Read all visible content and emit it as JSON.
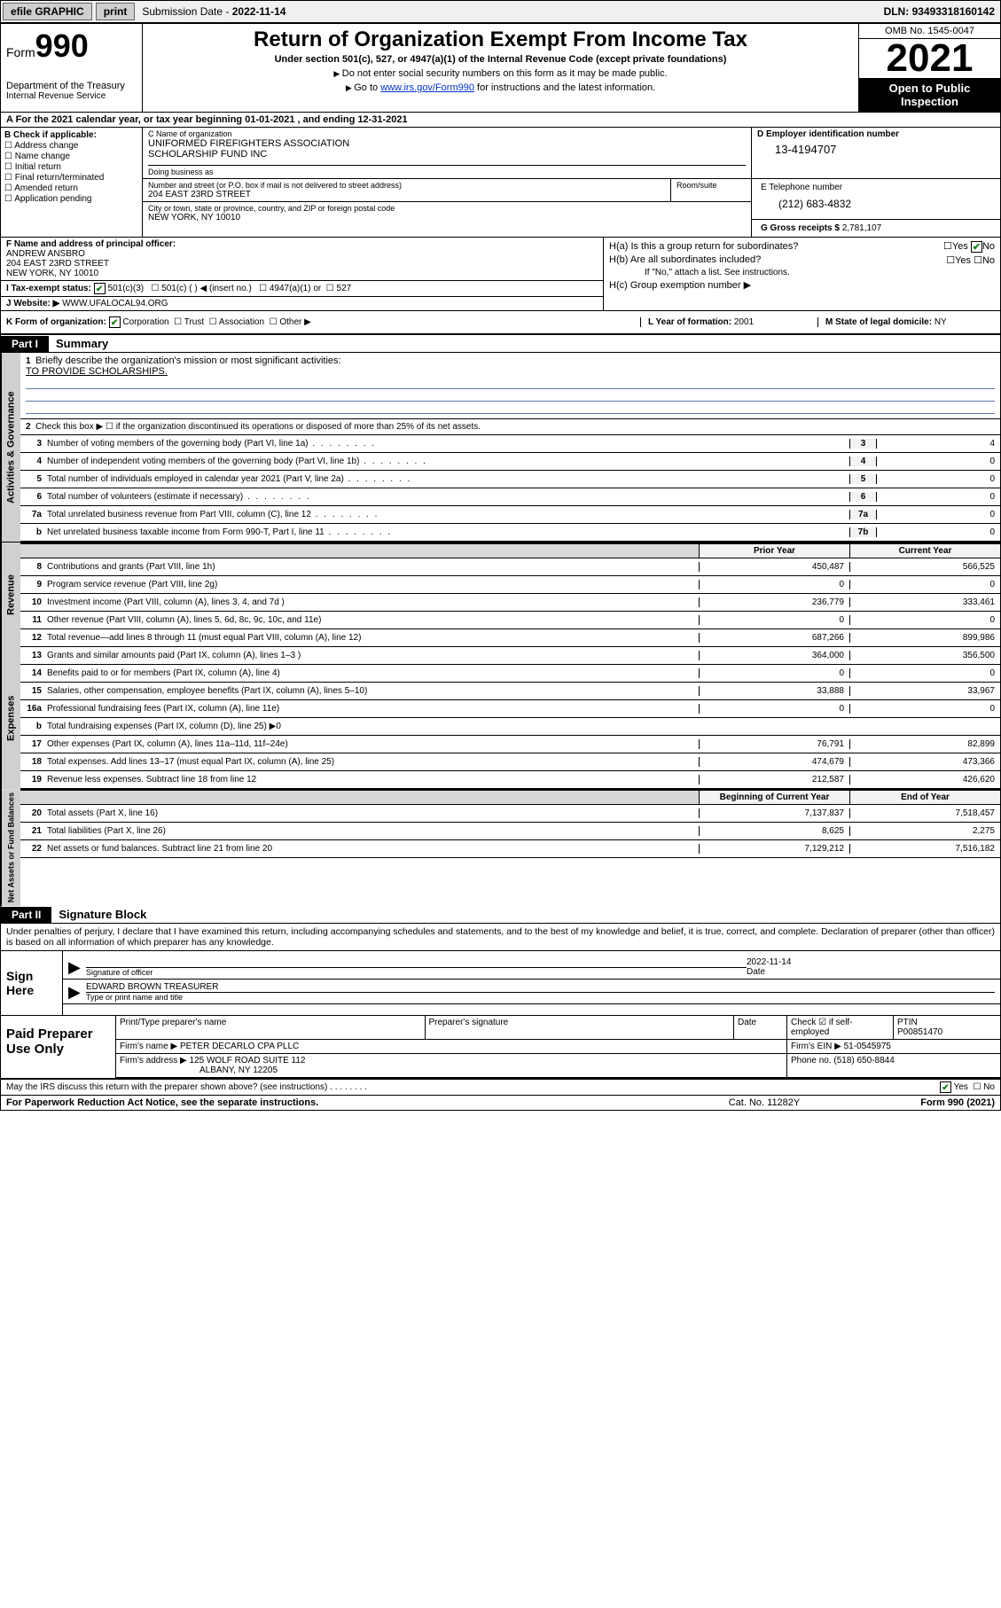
{
  "topbar": {
    "efile": "efile GRAPHIC",
    "print": "print",
    "submission_label": "Submission Date - ",
    "submission_date": "2022-11-14",
    "dln_label": "DLN: ",
    "dln": "93493318160142"
  },
  "header": {
    "form_label": "Form",
    "form_number": "990",
    "title": "Return of Organization Exempt From Income Tax",
    "subtitle": "Under section 501(c), 527, or 4947(a)(1) of the Internal Revenue Code (except private foundations)",
    "note1": "Do not enter social security numbers on this form as it may be made public.",
    "note2_pre": "Go to ",
    "note2_link": "www.irs.gov/Form990",
    "note2_post": " for instructions and the latest information.",
    "dept": "Department of the Treasury",
    "irs": "Internal Revenue Service",
    "omb": "OMB No. 1545-0047",
    "year": "2021",
    "open": "Open to Public Inspection"
  },
  "period": {
    "label_a": "A For the 2021 calendar year, or tax year beginning ",
    "begin": "01-01-2021",
    "mid": " , and ending ",
    "end": "12-31-2021"
  },
  "blockB": {
    "title": "B Check if applicable:",
    "addr": "Address change",
    "name": "Name change",
    "initial": "Initial return",
    "final": "Final return/terminated",
    "amended": "Amended return",
    "app": "Application pending"
  },
  "blockC": {
    "name_lbl": "C Name of organization",
    "name1": "UNIFORMED FIREFIGHTERS ASSOCIATION",
    "name2": "SCHOLARSHIP FUND INC",
    "dba_lbl": "Doing business as",
    "street_lbl": "Number and street (or P.O. box if mail is not delivered to street address)",
    "street": "204 EAST 23RD STREET",
    "room_lbl": "Room/suite",
    "city_lbl": "City or town, state or province, country, and ZIP or foreign postal code",
    "city": "NEW YORK, NY  10010"
  },
  "blockD": {
    "lbl": "D Employer identification number",
    "val": "13-4194707"
  },
  "blockE": {
    "lbl": "E Telephone number",
    "val": "(212) 683-4832"
  },
  "blockG": {
    "lbl": "G Gross receipts $ ",
    "val": "2,781,107"
  },
  "blockF": {
    "lbl": "F Name and address of principal officer:",
    "name": "ANDREW ANSBRO",
    "street": "204 EAST 23RD STREET",
    "city": "NEW YORK, NY  10010"
  },
  "blockH": {
    "ha": "H(a)  Is this a group return for subordinates?",
    "hb": "H(b)  Are all subordinates included?",
    "hb_note": "If \"No,\" attach a list. See instructions.",
    "hc": "H(c)  Group exemption number ▶",
    "yes": "Yes",
    "no": "No"
  },
  "blockI": {
    "lbl": "I   Tax-exempt status:",
    "c3": "501(c)(3)",
    "c_other": "501(c) (  ) ◀ (insert no.)",
    "a1": "4947(a)(1) or",
    "s527": "527"
  },
  "blockJ": {
    "lbl": "J   Website: ▶",
    "val": "WWW.UFALOCAL94.ORG"
  },
  "blockK": {
    "lbl": "K Form of organization:",
    "corp": "Corporation",
    "trust": "Trust",
    "assoc": "Association",
    "other": "Other ▶"
  },
  "blockL": {
    "lbl": "L Year of formation: ",
    "val": "2001"
  },
  "blockM": {
    "lbl": "M State of legal domicile: ",
    "val": "NY"
  },
  "part1": {
    "label": "Part I",
    "title": "Summary",
    "tab_gov": "Activities & Governance",
    "tab_rev": "Revenue",
    "tab_exp": "Expenses",
    "tab_net": "Net Assets or Fund Balances",
    "line1_lbl": "Briefly describe the organization's mission or most significant activities:",
    "line1_val": "TO PROVIDE SCHOLARSHIPS.",
    "line2": "Check this box ▶ ☐ if the organization discontinued its operations or disposed of more than 25% of its net assets.",
    "rows_gov": [
      {
        "n": "3",
        "t": "Number of voting members of the governing body (Part VI, line 1a)",
        "box": "3",
        "v": "4"
      },
      {
        "n": "4",
        "t": "Number of independent voting members of the governing body (Part VI, line 1b)",
        "box": "4",
        "v": "0"
      },
      {
        "n": "5",
        "t": "Total number of individuals employed in calendar year 2021 (Part V, line 2a)",
        "box": "5",
        "v": "0"
      },
      {
        "n": "6",
        "t": "Total number of volunteers (estimate if necessary)",
        "box": "6",
        "v": "0"
      },
      {
        "n": "7a",
        "t": "Total unrelated business revenue from Part VIII, column (C), line 12",
        "box": "7a",
        "v": "0"
      },
      {
        "n": "b",
        "t": "Net unrelated business taxable income from Form 990-T, Part I, line 11",
        "box": "7b",
        "v": "0"
      }
    ],
    "prior": "Prior Year",
    "current": "Current Year",
    "rows_rev": [
      {
        "n": "8",
        "t": "Contributions and grants (Part VIII, line 1h)",
        "v1": "450,487",
        "v2": "566,525"
      },
      {
        "n": "9",
        "t": "Program service revenue (Part VIII, line 2g)",
        "v1": "0",
        "v2": "0"
      },
      {
        "n": "10",
        "t": "Investment income (Part VIII, column (A), lines 3, 4, and 7d )",
        "v1": "236,779",
        "v2": "333,461"
      },
      {
        "n": "11",
        "t": "Other revenue (Part VIII, column (A), lines 5, 6d, 8c, 9c, 10c, and 11e)",
        "v1": "0",
        "v2": "0"
      },
      {
        "n": "12",
        "t": "Total revenue—add lines 8 through 11 (must equal Part VIII, column (A), line 12)",
        "v1": "687,266",
        "v2": "899,986"
      }
    ],
    "rows_exp": [
      {
        "n": "13",
        "t": "Grants and similar amounts paid (Part IX, column (A), lines 1–3 )",
        "v1": "364,000",
        "v2": "356,500"
      },
      {
        "n": "14",
        "t": "Benefits paid to or for members (Part IX, column (A), line 4)",
        "v1": "0",
        "v2": "0"
      },
      {
        "n": "15",
        "t": "Salaries, other compensation, employee benefits (Part IX, column (A), lines 5–10)",
        "v1": "33,888",
        "v2": "33,967"
      },
      {
        "n": "16a",
        "t": "Professional fundraising fees (Part IX, column (A), line 11e)",
        "v1": "0",
        "v2": "0"
      },
      {
        "n": "b",
        "t": "Total fundraising expenses (Part IX, column (D), line 25) ▶0",
        "v1": "",
        "v2": "",
        "shade": true
      },
      {
        "n": "17",
        "t": "Other expenses (Part IX, column (A), lines 11a–11d, 11f–24e)",
        "v1": "76,791",
        "v2": "82,899"
      },
      {
        "n": "18",
        "t": "Total expenses. Add lines 13–17 (must equal Part IX, column (A), line 25)",
        "v1": "474,679",
        "v2": "473,366"
      },
      {
        "n": "19",
        "t": "Revenue less expenses. Subtract line 18 from line 12",
        "v1": "212,587",
        "v2": "426,620"
      }
    ],
    "begin": "Beginning of Current Year",
    "end": "End of Year",
    "rows_net": [
      {
        "n": "20",
        "t": "Total assets (Part X, line 16)",
        "v1": "7,137,837",
        "v2": "7,518,457"
      },
      {
        "n": "21",
        "t": "Total liabilities (Part X, line 26)",
        "v1": "8,625",
        "v2": "2,275"
      },
      {
        "n": "22",
        "t": "Net assets or fund balances. Subtract line 21 from line 20",
        "v1": "7,129,212",
        "v2": "7,516,182"
      }
    ]
  },
  "part2": {
    "label": "Part II",
    "title": "Signature Block",
    "intro": "Under penalties of perjury, I declare that I have examined this return, including accompanying schedules and statements, and to the best of my knowledge and belief, it is true, correct, and complete. Declaration of preparer (other than officer) is based on all information of which preparer has any knowledge.",
    "sign_here": "Sign Here",
    "sig_officer_lbl": "Signature of officer",
    "sig_date_lbl": "Date",
    "sig_date": "2022-11-14",
    "officer_name": "EDWARD BROWN  TREASURER",
    "officer_name_lbl": "Type or print name and title",
    "paid": "Paid Preparer Use Only",
    "prep_name_lbl": "Print/Type preparer's name",
    "prep_sig_lbl": "Preparer's signature",
    "prep_date_lbl": "Date",
    "prep_check_lbl": "Check ☑ if self-employed",
    "ptin_lbl": "PTIN",
    "ptin": "P00851470",
    "firm_name_lbl": "Firm's name   ▶",
    "firm_name": "PETER DECARLO CPA PLLC",
    "firm_ein_lbl": "Firm's EIN ▶",
    "firm_ein": "51-0545975",
    "firm_addr_lbl": "Firm's address ▶",
    "firm_addr1": "125 WOLF ROAD SUITE 112",
    "firm_addr2": "ALBANY, NY  12205",
    "phone_lbl": "Phone no. ",
    "phone": "(518) 650-8844",
    "discuss": "May the IRS discuss this return with the preparer shown above? (see instructions)",
    "paperwork": "For Paperwork Reduction Act Notice, see the separate instructions.",
    "cat": "Cat. No. 11282Y",
    "formrev": "Form 990 (2021)"
  }
}
